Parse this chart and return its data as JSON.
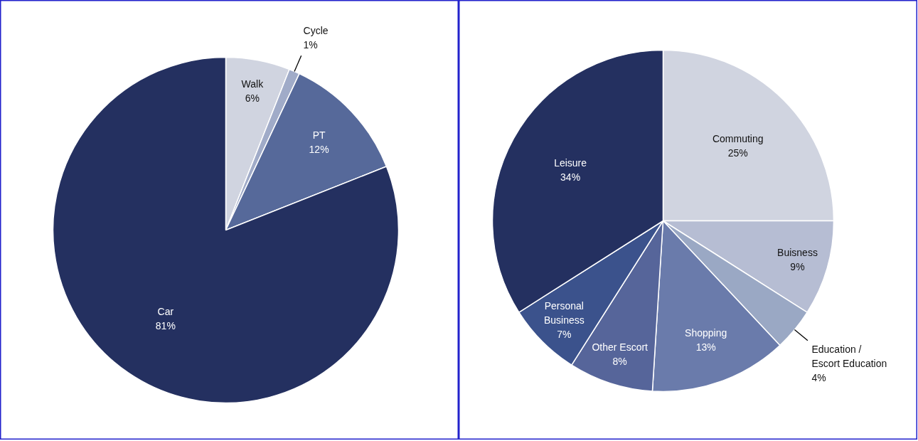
{
  "chart_data": [
    {
      "type": "pie",
      "categories": [
        "Walk",
        "Cycle",
        "PT",
        "Car"
      ],
      "values": [
        6,
        1,
        12,
        81
      ],
      "value_labels": [
        "6%",
        "1%",
        "12%",
        "81%"
      ],
      "colors": [
        "#d0d4e0",
        "#a0abc8",
        "#56699a",
        "#243060"
      ]
    },
    {
      "type": "pie",
      "categories": [
        "Commuting",
        "Buisness",
        "Education /\nEscort Education",
        "Shopping",
        "Other Escort",
        "Personal\nBusiness",
        "Leisure"
      ],
      "values": [
        25,
        9,
        4,
        13,
        8,
        7,
        34
      ],
      "value_labels": [
        "25%",
        "9%",
        "4%",
        "13%",
        "8%",
        "7%",
        "34%"
      ],
      "colors": [
        "#d0d4e0",
        "#b6bdd3",
        "#9aa8c4",
        "#6a7bab",
        "#56659a",
        "#3b528c",
        "#243060"
      ]
    }
  ]
}
